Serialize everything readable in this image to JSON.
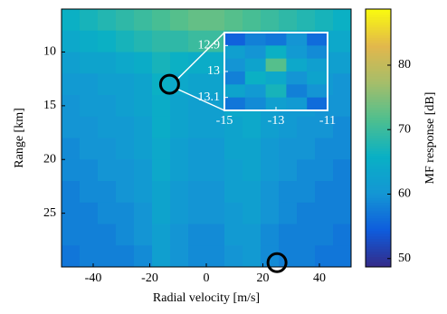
{
  "chart_data": {
    "type": "heatmap",
    "xlabel": "Radial velocity [m/s]",
    "ylabel": "Range [km]",
    "xlim": [
      -51.2,
      51.2
    ],
    "ylim": [
      30,
      6
    ],
    "xticks": [
      -40,
      -20,
      0,
      20,
      40
    ],
    "yticks": [
      10,
      15,
      20,
      25
    ],
    "z": [
      [
        66,
        67,
        68,
        69,
        70,
        71,
        72,
        73,
        73,
        72,
        71,
        70,
        69,
        68,
        67,
        66
      ],
      [
        64,
        65,
        66,
        67,
        68,
        69,
        69,
        70,
        70,
        69,
        68,
        67,
        66,
        65,
        64,
        64
      ],
      [
        62,
        63,
        63,
        64,
        65,
        67,
        66,
        65,
        65,
        66,
        66,
        65,
        64,
        63,
        62,
        62
      ],
      [
        61,
        61,
        62,
        62,
        63,
        66,
        64,
        63,
        63,
        64,
        65,
        63,
        62,
        61,
        61,
        60
      ],
      [
        60,
        61,
        61,
        62,
        63,
        65,
        63,
        62,
        62,
        64,
        64,
        62,
        61,
        61,
        60,
        60
      ],
      [
        60,
        60,
        61,
        61,
        62,
        65,
        63,
        62,
        62,
        63,
        64,
        62,
        61,
        60,
        60,
        59
      ],
      [
        59,
        60,
        60,
        61,
        62,
        64,
        62,
        61,
        61,
        63,
        63,
        61,
        60,
        60,
        59,
        59
      ],
      [
        59,
        59,
        60,
        60,
        61,
        64,
        62,
        61,
        61,
        62,
        63,
        61,
        60,
        59,
        59,
        58
      ],
      [
        58,
        59,
        59,
        60,
        61,
        63,
        61,
        60,
        60,
        62,
        62,
        60,
        59,
        59,
        58,
        58
      ],
      [
        58,
        58,
        59,
        59,
        60,
        63,
        61,
        60,
        60,
        61,
        62,
        60,
        59,
        58,
        58,
        58
      ],
      [
        58,
        58,
        58,
        59,
        60,
        62,
        60,
        59,
        59,
        61,
        61,
        59,
        58,
        58,
        58,
        57
      ],
      [
        57,
        58,
        58,
        58,
        59,
        62,
        60,
        59,
        59,
        60,
        61,
        59,
        58,
        58,
        57,
        57
      ]
    ],
    "markers": [
      {
        "x": -13,
        "y": 13
      },
      {
        "x": 25,
        "y": 29.6
      }
    ],
    "colorbar": {
      "label": "MF response [dB]",
      "lim": [
        48.7,
        88.7
      ],
      "ticks": [
        50,
        60,
        70,
        80
      ]
    },
    "colormap": [
      "#352a87",
      "#0f5cdd",
      "#1496d4",
      "#09b0c5",
      "#4ebf8f",
      "#a5be6a",
      "#e2b74c",
      "#f9fb0e"
    ],
    "inset": {
      "xlim": [
        -15,
        -11
      ],
      "ylim": [
        13.15,
        12.85
      ],
      "xticks": [
        -15,
        -13,
        -11
      ],
      "yticks": [
        12.9,
        13,
        13.1
      ],
      "z": [
        [
          55,
          58,
          57,
          60,
          56
        ],
        [
          62,
          60,
          66,
          61,
          59
        ],
        [
          60,
          63,
          72,
          64,
          62
        ],
        [
          58,
          66,
          64,
          60,
          63
        ],
        [
          63,
          61,
          67,
          58,
          60
        ],
        [
          57,
          59,
          62,
          61,
          56
        ]
      ]
    }
  }
}
